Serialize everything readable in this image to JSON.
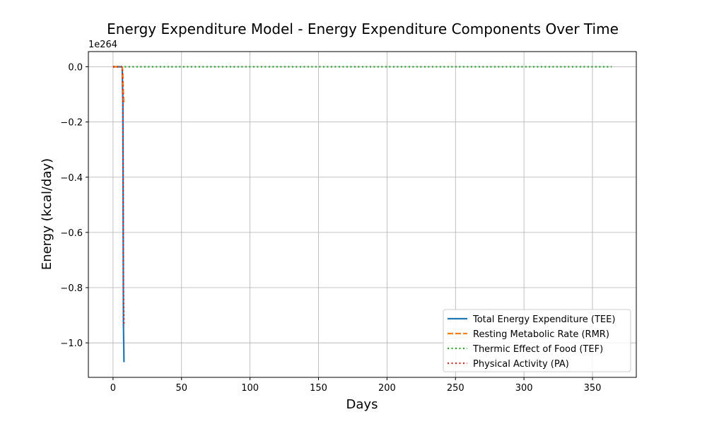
{
  "chart_data": {
    "type": "line",
    "title": "Energy Expenditure Model - Energy Expenditure Components Over Time",
    "xlabel": "Days",
    "ylabel": "Energy (kcal/day)",
    "y_offset_label": "1e264",
    "xlim": [
      -18,
      382
    ],
    "ylim": [
      -1.125,
      0.055
    ],
    "x_ticks": [
      0,
      50,
      100,
      150,
      200,
      250,
      300,
      350
    ],
    "x_tick_labels": [
      "0",
      "50",
      "100",
      "150",
      "200",
      "250",
      "300",
      "350"
    ],
    "y_ticks": [
      0.0,
      -0.2,
      -0.4,
      -0.6,
      -0.8,
      -1.0
    ],
    "y_tick_labels": [
      "0.0",
      "−0.2",
      "−0.4",
      "−0.6",
      "−0.8",
      "−1.0"
    ],
    "grid": true,
    "legend_position": "lower-right",
    "series": [
      {
        "name": "Total Energy Expenditure (TEE)",
        "color": "#1f77b4",
        "style": "solid",
        "x": [
          0,
          1,
          2,
          3,
          4,
          5,
          6,
          6.7,
          7.2,
          7.6,
          8
        ],
        "y": [
          0,
          0,
          0,
          0,
          0,
          0,
          0,
          -0.001,
          -0.13,
          -0.93,
          -1.07
        ]
      },
      {
        "name": "Resting Metabolic Rate (RMR)",
        "color": "#ff7f0e",
        "style": "dashed",
        "x": [
          0,
          1,
          2,
          3,
          4,
          5,
          6,
          6.7,
          7.1,
          7.5,
          8
        ],
        "y": [
          0,
          0,
          0,
          0,
          0,
          0,
          0,
          -0.001,
          -0.02,
          -0.09,
          -0.135
        ]
      },
      {
        "name": "Thermic Effect of Food (TEF)",
        "color": "#2ca02c",
        "style": "dotted",
        "x": [
          0,
          50,
          100,
          150,
          200,
          250,
          300,
          364
        ],
        "y": [
          0,
          0,
          0,
          0,
          0,
          0,
          0,
          0
        ]
      },
      {
        "name": "Physical Activity (PA)",
        "color": "#d62728",
        "style": "dotted",
        "x": [
          0,
          1,
          2,
          3,
          4,
          5,
          6,
          6.7,
          7.2,
          7.6,
          8
        ],
        "y": [
          0,
          0,
          0,
          0,
          0,
          0,
          0,
          -0.001,
          -0.12,
          -0.8,
          -0.94
        ]
      }
    ]
  }
}
